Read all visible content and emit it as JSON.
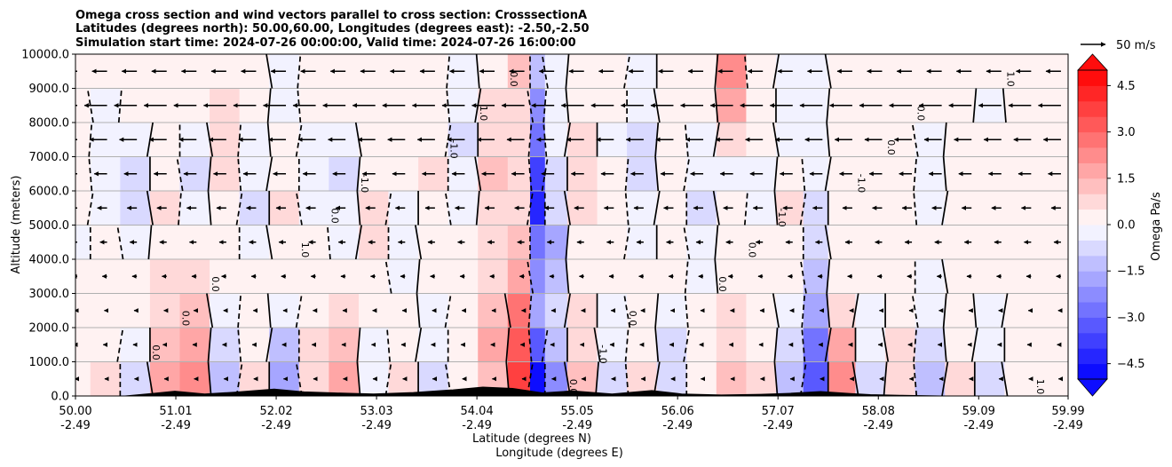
{
  "chart_data": {
    "type": "heatmap",
    "title_lines": [
      "Omega cross section and wind vectors parallel to cross section: CrosssectionA",
      "Latitudes (degrees north): 50.00,60.00, Longitudes (degrees east): -2.50,-2.50",
      "Simulation start time: 2024-07-26 00:00:00, Valid time: 2024-07-26 16:00:00"
    ],
    "ylabel": "Altitude (meters)",
    "xlabel_lat": "Latitude (degrees N)",
    "xlabel_lon": "Longitude (degrees E)",
    "ylim": [
      0,
      10000
    ],
    "xlim": [
      50.0,
      59.99
    ],
    "y_ticks": [
      {
        "value": 0,
        "label": "0.0"
      },
      {
        "value": 1000,
        "label": "1000.0"
      },
      {
        "value": 2000,
        "label": "2000.0"
      },
      {
        "value": 3000,
        "label": "3000.0"
      },
      {
        "value": 4000,
        "label": "4000.0"
      },
      {
        "value": 5000,
        "label": "5000.0"
      },
      {
        "value": 6000,
        "label": "6000.0"
      },
      {
        "value": 7000,
        "label": "7000.0"
      },
      {
        "value": 8000,
        "label": "8000.0"
      },
      {
        "value": 9000,
        "label": "9000.0"
      },
      {
        "value": 10000,
        "label": "10000.0"
      }
    ],
    "x_ticks": [
      {
        "lat": 50.0,
        "lat_label": "50.00",
        "lon_label": "-2.49"
      },
      {
        "lat": 51.01,
        "lat_label": "51.01",
        "lon_label": "-2.49"
      },
      {
        "lat": 52.02,
        "lat_label": "52.02",
        "lon_label": "-2.49"
      },
      {
        "lat": 53.03,
        "lat_label": "53.03",
        "lon_label": "-2.49"
      },
      {
        "lat": 54.04,
        "lat_label": "54.04",
        "lon_label": "-2.49"
      },
      {
        "lat": 55.05,
        "lat_label": "55.05",
        "lon_label": "-2.49"
      },
      {
        "lat": 56.06,
        "lat_label": "56.06",
        "lon_label": "-2.49"
      },
      {
        "lat": 57.07,
        "lat_label": "57.07",
        "lon_label": "-2.49"
      },
      {
        "lat": 58.08,
        "lat_label": "58.08",
        "lon_label": "-2.49"
      },
      {
        "lat": 59.09,
        "lat_label": "59.09",
        "lon_label": "-2.49"
      },
      {
        "lat": 59.99,
        "lat_label": "59.99",
        "lon_label": "-2.49"
      }
    ],
    "grid": "horizontal",
    "colorbar": {
      "label": "Omega Pa/s",
      "range": [
        -5.0,
        5.0
      ],
      "levels": 20,
      "extend": "both",
      "ticks": [
        {
          "value": 4.5,
          "label": "4.5"
        },
        {
          "value": 3.0,
          "label": "3.0"
        },
        {
          "value": 1.5,
          "label": "1.5"
        },
        {
          "value": 0.0,
          "label": "0.0"
        },
        {
          "value": -1.5,
          "label": "−1.5"
        },
        {
          "value": -3.0,
          "label": "−3.0"
        },
        {
          "value": -4.5,
          "label": "−4.5"
        }
      ],
      "colors": {
        "negative": "#0000ff",
        "neutral": "#ffffff",
        "positive": "#ff0000"
      }
    },
    "quiver_key": {
      "label": "50 m/s",
      "speed": 50
    },
    "contour_labels": [
      "0.0",
      "1.0",
      "-1.0",
      "0.0",
      "0.0",
      "-1.0",
      "1.0",
      "0.0",
      "0.0",
      "1.0",
      "-1.0",
      "0.0",
      "0.0",
      "1.0",
      "0.0",
      "-1.0",
      "0.0",
      "0.0",
      "-1.0",
      "0.0"
    ],
    "cells": {
      "lats": [
        50.0,
        50.3,
        50.6,
        50.9,
        51.2,
        51.5,
        51.8,
        52.1,
        52.4,
        52.7,
        53.0,
        53.3,
        53.6,
        53.9,
        54.2,
        54.5,
        54.65,
        54.8,
        55.1,
        55.4,
        55.7,
        56.0,
        56.3,
        56.6,
        56.9,
        57.2,
        57.45,
        57.7,
        58.0,
        58.3,
        58.6,
        58.9,
        59.2,
        59.5,
        59.8
      ],
      "alts": [
        500,
        1500,
        2500,
        3500,
        4500,
        5500,
        6500,
        7500,
        8500,
        9500
      ],
      "omega": [
        [
          0.3,
          0.2,
          0.1,
          0.0,
          -0.1,
          0.0,
          0.2,
          0.3,
          0.2,
          0.1
        ],
        [
          0.5,
          0.4,
          0.3,
          0.1,
          0.0,
          -0.2,
          -0.3,
          -0.4,
          -0.2,
          0.0
        ],
        [
          -0.8,
          -0.3,
          0.1,
          0.2,
          -0.5,
          -1.0,
          -0.8,
          -0.3,
          0.0,
          0.1
        ],
        [
          1.5,
          1.2,
          0.8,
          0.6,
          0.3,
          0.5,
          0.4,
          0.2,
          0.3,
          0.2
        ],
        [
          2.0,
          1.5,
          1.0,
          0.5,
          0.2,
          -0.3,
          -0.6,
          -0.4,
          0.1,
          0.3
        ],
        [
          -1.5,
          -0.8,
          -0.3,
          0.0,
          0.2,
          0.4,
          0.6,
          0.8,
          0.5,
          0.2
        ],
        [
          0.5,
          0.3,
          0.2,
          0.1,
          -0.3,
          -0.6,
          -0.4,
          -0.2,
          0.0,
          0.3
        ],
        [
          -2.0,
          -1.2,
          -0.5,
          0.1,
          0.4,
          0.6,
          0.3,
          0.1,
          -0.2,
          -0.1
        ],
        [
          0.8,
          0.5,
          0.3,
          0.2,
          0.1,
          -0.2,
          -0.4,
          -0.3,
          0.1,
          0.2
        ],
        [
          1.5,
          1.0,
          0.6,
          0.3,
          -0.2,
          -0.5,
          -0.7,
          -0.3,
          0.1,
          0.2
        ],
        [
          -0.5,
          -0.3,
          0.1,
          0.3,
          0.5,
          0.6,
          0.3,
          0.1,
          0.2,
          0.1
        ],
        [
          0.6,
          0.4,
          0.2,
          -0.1,
          -0.4,
          -0.3,
          0.0,
          0.2,
          0.1,
          0.0
        ],
        [
          -0.8,
          -0.5,
          -0.2,
          0.0,
          0.2,
          0.4,
          0.5,
          0.3,
          0.1,
          0.1
        ],
        [
          0.4,
          0.3,
          0.2,
          0.1,
          0.0,
          -0.2,
          -0.4,
          -0.6,
          -0.3,
          -0.1
        ],
        [
          1.2,
          1.5,
          1.0,
          0.8,
          0.6,
          0.9,
          1.2,
          0.8,
          0.5,
          0.3
        ],
        [
          3.5,
          3.0,
          2.5,
          1.8,
          1.2,
          0.8,
          0.5,
          0.6,
          0.8,
          1.0
        ],
        [
          -5.0,
          -3.5,
          -2.0,
          -2.5,
          -3.0,
          -4.5,
          -4.0,
          -3.0,
          -2.5,
          -1.5
        ],
        [
          -2.5,
          -1.5,
          -1.0,
          -1.5,
          -2.0,
          -1.0,
          -0.8,
          -0.5,
          -0.3,
          -0.2
        ],
        [
          1.0,
          0.8,
          0.6,
          0.4,
          0.3,
          0.5,
          0.8,
          0.6,
          0.3,
          0.2
        ],
        [
          -0.6,
          -0.4,
          -0.2,
          0.0,
          0.2,
          0.3,
          0.1,
          -0.1,
          0.0,
          0.1
        ],
        [
          0.5,
          0.4,
          0.2,
          0.1,
          -0.2,
          -0.5,
          -0.8,
          -0.6,
          -0.3,
          -0.1
        ],
        [
          -1.0,
          -0.6,
          -0.3,
          0.1,
          0.3,
          0.4,
          0.2,
          0.0,
          0.2,
          0.3
        ],
        [
          0.4,
          0.3,
          0.1,
          -0.2,
          -0.4,
          -0.6,
          -0.4,
          -0.1,
          0.2,
          0.4
        ],
        [
          1.2,
          0.8,
          0.5,
          0.3,
          0.2,
          0.0,
          -0.2,
          0.5,
          1.5,
          2.0
        ],
        [
          0.6,
          0.4,
          0.2,
          0.1,
          0.0,
          -0.4,
          -0.2,
          0.1,
          0.3,
          0.4
        ],
        [
          -1.5,
          -1.0,
          -0.4,
          0.0,
          0.3,
          0.6,
          0.2,
          -0.2,
          -0.4,
          -0.1
        ],
        [
          -3.5,
          -2.8,
          -2.0,
          -1.5,
          -1.0,
          -0.6,
          -0.4,
          -0.3,
          -0.2,
          -0.1
        ],
        [
          2.0,
          1.5,
          0.8,
          0.4,
          0.2,
          0.1,
          0.0,
          0.1,
          0.2,
          0.3
        ],
        [
          -0.8,
          -0.5,
          -0.2,
          0.0,
          0.2,
          0.3,
          0.2,
          0.1,
          0.0,
          0.1
        ],
        [
          0.8,
          0.5,
          0.3,
          0.2,
          0.1,
          0.0,
          0.2,
          0.3,
          0.2,
          0.1
        ],
        [
          -1.2,
          -0.8,
          -0.5,
          -0.2,
          0.0,
          -0.3,
          -0.5,
          -0.2,
          0.0,
          0.1
        ],
        [
          0.5,
          0.4,
          0.3,
          0.2,
          0.1,
          0.2,
          0.3,
          0.2,
          0.1,
          0.0
        ],
        [
          -0.6,
          -0.4,
          -0.2,
          0.1,
          0.3,
          0.2,
          0.1,
          0.0,
          -0.1,
          0.0
        ],
        [
          0.3,
          0.2,
          0.1,
          0.0,
          0.1,
          0.2,
          0.1,
          0.1,
          0.2,
          0.1
        ],
        [
          0.2,
          0.3,
          0.2,
          0.1,
          0.0,
          0.1,
          0.2,
          0.3,
          0.2,
          0.1
        ]
      ]
    },
    "terrain": [
      {
        "lat": 50.0,
        "alt": 0
      },
      {
        "lat": 50.5,
        "alt": 0
      },
      {
        "lat": 50.8,
        "alt": 80
      },
      {
        "lat": 51.0,
        "alt": 140
      },
      {
        "lat": 51.3,
        "alt": 60
      },
      {
        "lat": 51.6,
        "alt": 110
      },
      {
        "lat": 52.0,
        "alt": 200
      },
      {
        "lat": 52.3,
        "alt": 120
      },
      {
        "lat": 52.6,
        "alt": 90
      },
      {
        "lat": 53.0,
        "alt": 60
      },
      {
        "lat": 53.4,
        "alt": 100
      },
      {
        "lat": 53.8,
        "alt": 180
      },
      {
        "lat": 54.1,
        "alt": 260
      },
      {
        "lat": 54.4,
        "alt": 220
      },
      {
        "lat": 54.7,
        "alt": 90
      },
      {
        "lat": 55.0,
        "alt": 150
      },
      {
        "lat": 55.4,
        "alt": 60
      },
      {
        "lat": 55.8,
        "alt": 160
      },
      {
        "lat": 56.1,
        "alt": 60
      },
      {
        "lat": 56.5,
        "alt": 30
      },
      {
        "lat": 56.9,
        "alt": 50
      },
      {
        "lat": 57.2,
        "alt": 80
      },
      {
        "lat": 57.5,
        "alt": 130
      },
      {
        "lat": 57.8,
        "alt": 70
      },
      {
        "lat": 58.0,
        "alt": 40
      },
      {
        "lat": 58.3,
        "alt": 20
      },
      {
        "lat": 58.7,
        "alt": 0
      },
      {
        "lat": 59.99,
        "alt": 0
      }
    ],
    "vectors": {
      "rows_alt": [
        9500,
        8500,
        7500,
        6500,
        5500,
        4500,
        3500,
        2500,
        1500,
        500
      ],
      "cols_lat": [
        50.0,
        50.3,
        50.6,
        50.9,
        51.2,
        51.5,
        51.8,
        52.1,
        52.4,
        52.7,
        53.0,
        53.3,
        53.6,
        53.9,
        54.2,
        54.5,
        54.8,
        55.1,
        55.4,
        55.7,
        56.0,
        56.3,
        56.6,
        56.9,
        57.2,
        57.5,
        57.8,
        58.1,
        58.4,
        58.7,
        59.0,
        59.3,
        59.6,
        59.9
      ],
      "speed_by_row": [
        -22,
        -18,
        -15,
        -12,
        -10,
        -8,
        -6,
        -4,
        -3,
        -2
      ]
    }
  }
}
